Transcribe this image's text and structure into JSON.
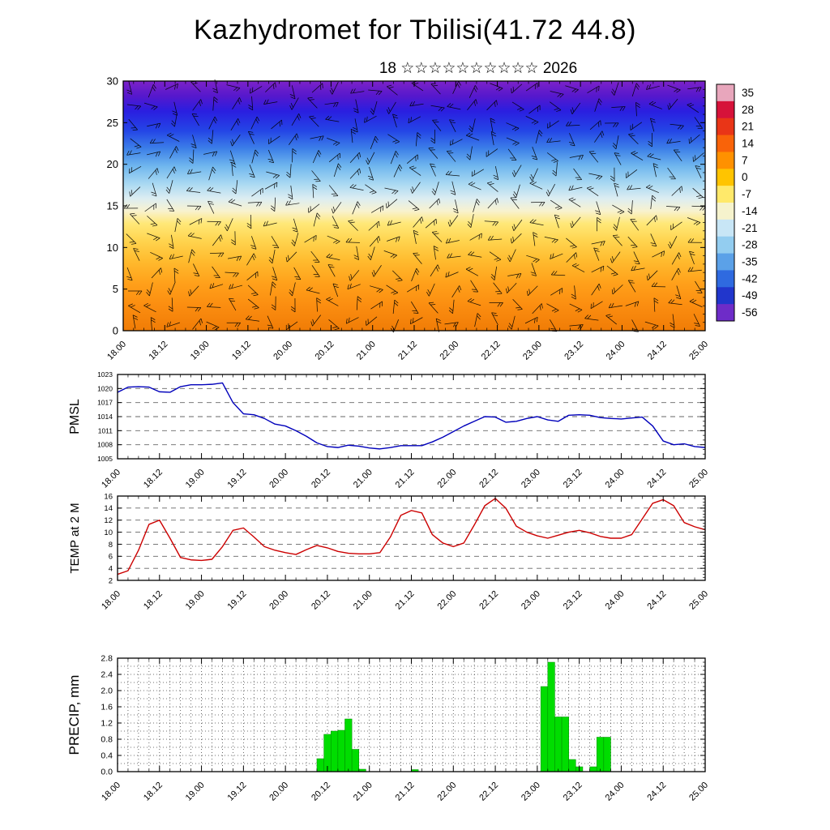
{
  "meta": {
    "title": "Kazhydromet for Tbilisi(41.72 44.8)",
    "subtitle": "18 ☆☆☆☆☆☆☆☆☆☆ 2026"
  },
  "time_axis": {
    "labels": [
      "18.00",
      "18.12",
      "19.00",
      "19.12",
      "20.00",
      "20.12",
      "21.00",
      "21.12",
      "22.00",
      "22.12",
      "23.00",
      "23.12",
      "24.00",
      "24.12",
      "25.00"
    ],
    "start": 18,
    "step": 0.5,
    "minor_step": 0.125,
    "font": 11
  },
  "chart_data": [
    {
      "id": "cross_section",
      "type": "heatmap",
      "description": "time-height temperature cross-section with wind barbs",
      "ylabel": "",
      "ylim": [
        0,
        30
      ],
      "y_ticks": [
        "0",
        "5",
        "10",
        "15",
        "20",
        "25",
        "30"
      ],
      "xlim": [
        18,
        25
      ],
      "gradient_stops": [
        [
          "0%",
          "#7c22c8"
        ],
        [
          "6%",
          "#5618cc"
        ],
        [
          "12%",
          "#2a1ee0"
        ],
        [
          "20%",
          "#2446e6"
        ],
        [
          "27%",
          "#3c7fe8"
        ],
        [
          "34%",
          "#6fb6ee"
        ],
        [
          "41%",
          "#a8d8f2"
        ],
        [
          "47%",
          "#dcedf2"
        ],
        [
          "52%",
          "#f8f2cf"
        ],
        [
          "57%",
          "#ffe878"
        ],
        [
          "64%",
          "#ffd44e"
        ],
        [
          "72%",
          "#ffbb2e"
        ],
        [
          "81%",
          "#ffa01a"
        ],
        [
          "90%",
          "#fb8d10"
        ],
        [
          "100%",
          "#f07c06"
        ]
      ],
      "colorbar_labels": [
        "35",
        "28",
        "21",
        "14",
        "7",
        "0",
        "-7",
        "-14",
        "-21",
        "-28",
        "-35",
        "-42",
        "-49",
        "-56"
      ],
      "colorbar_colors": [
        "#e8a6bc",
        "#d6123a",
        "#e93517",
        "#f96309",
        "#ff9100",
        "#ffc400",
        "#ffe96a",
        "#f6f3cd",
        "#c8e6f6",
        "#93cdf0",
        "#5ba1e8",
        "#2f6ae0",
        "#2136cc",
        "#6e2cc8"
      ],
      "wind_barbs": {
        "cols": 29,
        "rows": 15,
        "seed": 20260118
      }
    },
    {
      "id": "pmsl",
      "type": "line",
      "ylabel": "PMSL",
      "color": "#0000bb",
      "ylim": [
        1005,
        1023
      ],
      "y_ticks": [
        "1005",
        "1008",
        "1011",
        "1014",
        "1017",
        "1020",
        "1023"
      ],
      "tick_font": 8.5,
      "label_font": 16,
      "minor": 1,
      "x_start": 18,
      "x_step": 0.125,
      "values": [
        1019.2,
        1020.3,
        1020.4,
        1020.3,
        1019.3,
        1019.2,
        1020.4,
        1020.8,
        1020.8,
        1020.9,
        1021.2,
        1017.0,
        1014.6,
        1014.4,
        1013.6,
        1012.4,
        1012.0,
        1011.0,
        1009.8,
        1008.4,
        1007.6,
        1007.4,
        1007.9,
        1007.7,
        1007.3,
        1007.1,
        1007.4,
        1007.8,
        1007.8,
        1007.8,
        1008.6,
        1009.6,
        1010.8,
        1012.0,
        1013.0,
        1014.0,
        1013.9,
        1012.8,
        1013.0,
        1013.6,
        1014.0,
        1013.3,
        1013.0,
        1014.3,
        1014.4,
        1014.3,
        1013.8,
        1013.6,
        1013.5,
        1013.7,
        1013.9,
        1012.0,
        1008.8,
        1008.0,
        1008.2,
        1007.6,
        1007.4
      ]
    },
    {
      "id": "temp2m",
      "type": "line",
      "ylabel": "TEMP at 2 M",
      "color": "#cc0000",
      "ylim": [
        2,
        16
      ],
      "y_ticks": [
        "2",
        "4",
        "6",
        "8",
        "10",
        "12",
        "14",
        "16"
      ],
      "tick_font": 9.5,
      "label_font": 15,
      "minor": 0.5,
      "x_start": 18,
      "x_step": 0.125,
      "values": [
        3.0,
        3.6,
        7.0,
        11.3,
        12.0,
        9.0,
        5.8,
        5.4,
        5.3,
        5.5,
        7.6,
        10.3,
        10.7,
        9.2,
        7.6,
        7.0,
        6.6,
        6.3,
        7.1,
        7.8,
        7.4,
        6.8,
        6.5,
        6.4,
        6.4,
        6.6,
        9.2,
        12.8,
        13.6,
        13.2,
        9.6,
        8.2,
        7.6,
        8.2,
        11.2,
        14.4,
        15.6,
        14.0,
        11.0,
        10.0,
        9.4,
        9.0,
        9.5,
        10.0,
        10.3,
        9.9,
        9.3,
        9.0,
        9.0,
        9.6,
        12.2,
        14.8,
        15.4,
        14.4,
        11.6,
        10.9,
        10.4
      ]
    },
    {
      "id": "precip",
      "type": "bar",
      "ylabel": "PRECIP, mm",
      "color": "#00dd00",
      "ylim": [
        0,
        2.8
      ],
      "y_ticks": [
        "0.0",
        "0.4",
        "0.8",
        "1.2",
        "1.6",
        "2.0",
        "2.4",
        "2.8"
      ],
      "bar_width": 0.0833,
      "bars": [
        {
          "x": 20.375,
          "h": 0.32
        },
        {
          "x": 20.4583,
          "h": 0.92
        },
        {
          "x": 20.5417,
          "h": 1.0
        },
        {
          "x": 20.625,
          "h": 1.02
        },
        {
          "x": 20.7083,
          "h": 1.3
        },
        {
          "x": 20.7917,
          "h": 0.55
        },
        {
          "x": 20.875,
          "h": 0.06
        },
        {
          "x": 21.5,
          "h": 0.05
        },
        {
          "x": 23.0417,
          "h": 2.1
        },
        {
          "x": 23.125,
          "h": 2.7
        },
        {
          "x": 23.2083,
          "h": 1.35
        },
        {
          "x": 23.2917,
          "h": 1.35
        },
        {
          "x": 23.375,
          "h": 0.3
        },
        {
          "x": 23.4583,
          "h": 0.12
        },
        {
          "x": 23.625,
          "h": 0.12
        },
        {
          "x": 23.7083,
          "h": 0.85
        },
        {
          "x": 23.7917,
          "h": 0.85
        }
      ]
    }
  ]
}
